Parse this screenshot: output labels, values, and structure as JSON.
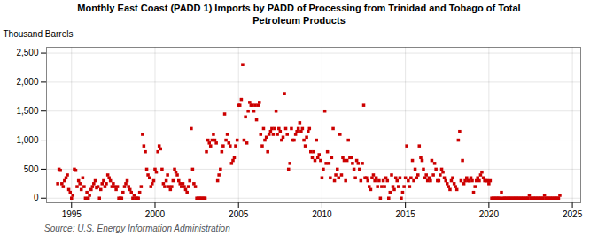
{
  "chart_data": {
    "type": "scatter",
    "title": "Monthly East Coast (PADD 1) Imports by PADD of Processing from Trinidad and Tobago of Total\nPetroleum Products",
    "ylabel": "Thousand Barrels",
    "source": "Source: U.S. Energy Information Administration",
    "color": "#cc0000",
    "marker": "square",
    "grid": true,
    "xlim": [
      1993.5,
      2025.5
    ],
    "ylim": [
      -80,
      2600
    ],
    "xticks": [
      1995,
      2000,
      2005,
      2010,
      2015,
      2020,
      2025
    ],
    "yticks": [
      0,
      500,
      {
        "value": 1000,
        "label": "1,000"
      },
      {
        "value": 1500,
        "label": "1,500"
      },
      {
        "value": 2000,
        "label": "2,000"
      },
      {
        "value": 2500,
        "label": "2,500"
      }
    ],
    "x": [
      1994.17,
      1994.25,
      1994.33,
      1994.42,
      1994.5,
      1994.58,
      1994.67,
      1994.75,
      1994.83,
      1994.92,
      1995.0,
      1995.08,
      1995.17,
      1995.25,
      1995.33,
      1995.42,
      1995.5,
      1995.58,
      1995.67,
      1995.75,
      1995.83,
      1995.92,
      1996.0,
      1996.08,
      1996.17,
      1996.25,
      1996.33,
      1996.42,
      1996.5,
      1996.58,
      1996.67,
      1996.75,
      1996.83,
      1996.92,
      1997.0,
      1997.08,
      1997.17,
      1997.25,
      1997.33,
      1997.42,
      1997.5,
      1997.58,
      1997.67,
      1997.75,
      1997.83,
      1997.92,
      1998.0,
      1998.08,
      1998.17,
      1998.25,
      1998.33,
      1998.42,
      1998.5,
      1998.58,
      1998.67,
      1998.75,
      1998.83,
      1998.92,
      1999.0,
      1999.08,
      1999.17,
      1999.25,
      1999.33,
      1999.42,
      1999.5,
      1999.58,
      1999.67,
      1999.75,
      1999.83,
      1999.92,
      2000.0,
      2000.08,
      2000.17,
      2000.25,
      2000.33,
      2000.42,
      2000.5,
      2000.58,
      2000.67,
      2000.75,
      2000.83,
      2000.92,
      2001.0,
      2001.08,
      2001.17,
      2001.25,
      2001.33,
      2001.42,
      2001.5,
      2001.58,
      2001.67,
      2001.75,
      2001.83,
      2001.92,
      2002.0,
      2002.08,
      2002.17,
      2002.25,
      2002.33,
      2002.42,
      2002.5,
      2002.58,
      2002.67,
      2002.75,
      2002.83,
      2002.92,
      2003.0,
      2003.08,
      2003.17,
      2003.25,
      2003.33,
      2003.42,
      2003.5,
      2003.58,
      2003.67,
      2003.75,
      2003.83,
      2003.92,
      2004.0,
      2004.08,
      2004.17,
      2004.25,
      2004.33,
      2004.42,
      2004.5,
      2004.58,
      2004.67,
      2004.75,
      2004.83,
      2004.92,
      2005.0,
      2005.08,
      2005.17,
      2005.25,
      2005.33,
      2005.42,
      2005.5,
      2005.58,
      2005.67,
      2005.75,
      2005.83,
      2005.92,
      2006.0,
      2006.08,
      2006.17,
      2006.25,
      2006.33,
      2006.42,
      2006.5,
      2006.58,
      2006.67,
      2006.75,
      2006.83,
      2006.92,
      2007.0,
      2007.08,
      2007.17,
      2007.25,
      2007.33,
      2007.42,
      2007.5,
      2007.58,
      2007.67,
      2007.75,
      2007.83,
      2007.92,
      2008.0,
      2008.08,
      2008.17,
      2008.25,
      2008.33,
      2008.42,
      2008.5,
      2008.58,
      2008.67,
      2008.75,
      2008.83,
      2008.92,
      2009.0,
      2009.08,
      2009.17,
      2009.25,
      2009.33,
      2009.42,
      2009.5,
      2009.58,
      2009.67,
      2009.75,
      2009.83,
      2009.92,
      2010.0,
      2010.08,
      2010.17,
      2010.25,
      2010.33,
      2010.42,
      2010.5,
      2010.58,
      2010.67,
      2010.75,
      2010.83,
      2010.92,
      2011.0,
      2011.08,
      2011.17,
      2011.25,
      2011.33,
      2011.42,
      2011.5,
      2011.58,
      2011.67,
      2011.75,
      2011.83,
      2011.92,
      2012.0,
      2012.08,
      2012.17,
      2012.25,
      2012.33,
      2012.42,
      2012.5,
      2012.58,
      2012.67,
      2012.75,
      2012.83,
      2012.92,
      2013.0,
      2013.08,
      2013.17,
      2013.25,
      2013.33,
      2013.42,
      2013.5,
      2013.58,
      2013.67,
      2013.75,
      2013.83,
      2013.92,
      2014.0,
      2014.08,
      2014.17,
      2014.25,
      2014.33,
      2014.42,
      2014.5,
      2014.58,
      2014.67,
      2014.75,
      2014.83,
      2014.92,
      2015.0,
      2015.08,
      2015.17,
      2015.25,
      2015.33,
      2015.42,
      2015.5,
      2015.58,
      2015.67,
      2015.75,
      2015.83,
      2015.92,
      2016.0,
      2016.08,
      2016.17,
      2016.25,
      2016.33,
      2016.42,
      2016.5,
      2016.58,
      2016.67,
      2016.75,
      2016.83,
      2016.92,
      2017.0,
      2017.08,
      2017.17,
      2017.25,
      2017.33,
      2017.42,
      2017.5,
      2017.58,
      2017.67,
      2017.75,
      2017.83,
      2017.92,
      2018.0,
      2018.08,
      2018.17,
      2018.25,
      2018.33,
      2018.42,
      2018.5,
      2018.58,
      2018.67,
      2018.75,
      2018.83,
      2018.92,
      2019.0,
      2019.08,
      2019.17,
      2019.25,
      2019.33,
      2019.42,
      2019.5,
      2019.58,
      2019.67,
      2019.75,
      2019.83,
      2019.92,
      2020.0,
      2020.08,
      2020.17,
      2020.25,
      2020.33,
      2020.42,
      2020.5,
      2020.58,
      2020.67,
      2020.75,
      2020.83,
      2020.92,
      2021.0,
      2021.08,
      2021.17,
      2021.25,
      2021.33,
      2021.42,
      2021.5,
      2021.58,
      2021.67,
      2021.75,
      2021.83,
      2021.92,
      2022.0,
      2022.08,
      2022.17,
      2022.25,
      2022.33,
      2022.42,
      2022.5,
      2022.58,
      2022.67,
      2022.75,
      2022.83,
      2022.92,
      2023.0,
      2023.08,
      2023.17,
      2023.25,
      2023.33,
      2023.42,
      2023.5,
      2023.58,
      2023.67,
      2023.75,
      2023.83,
      2023.92,
      2024.0,
      2024.08,
      2024.17,
      2024.25
    ],
    "values": [
      250,
      500,
      480,
      250,
      200,
      300,
      350,
      400,
      150,
      100,
      0,
      50,
      500,
      480,
      200,
      300,
      250,
      150,
      350,
      200,
      0,
      100,
      0,
      50,
      150,
      200,
      250,
      300,
      180,
      200,
      0,
      150,
      250,
      300,
      200,
      250,
      400,
      350,
      300,
      200,
      250,
      200,
      150,
      200,
      0,
      0,
      0,
      100,
      200,
      250,
      300,
      200,
      150,
      100,
      0,
      50,
      0,
      0,
      0,
      100,
      200,
      1100,
      900,
      800,
      500,
      400,
      350,
      200,
      250,
      300,
      500,
      450,
      800,
      900,
      850,
      500,
      250,
      200,
      300,
      400,
      200,
      150,
      200,
      300,
      500,
      450,
      400,
      300,
      250,
      200,
      250,
      200,
      150,
      100,
      200,
      300,
      1200,
      500,
      250,
      200,
      0,
      0,
      0,
      0,
      0,
      0,
      0,
      800,
      1000,
      950,
      900,
      1000,
      1100,
      1000,
      950,
      300,
      400,
      500,
      800,
      900,
      1450,
      1000,
      1100,
      950,
      900,
      600,
      650,
      700,
      900,
      1000,
      1600,
      1600,
      1700,
      2300,
      1000,
      1400,
      950,
      1500,
      1650,
      1600,
      1600,
      1500,
      1600,
      1350,
      1600,
      1650,
      1100,
      900,
      1200,
      1000,
      1050,
      800,
      1100,
      1150,
      1200,
      1100,
      1200,
      1500,
      1100,
      1200,
      1150,
      1000,
      1050,
      1800,
      1200,
      1100,
      500,
      600,
      1200,
      1000,
      1000,
      1100,
      1150,
      1200,
      1300,
      1150,
      1200,
      1000,
      900,
      1050,
      1150,
      1200,
      800,
      700,
      800,
      650,
      1000,
      700,
      750,
      650,
      350,
      500,
      1500,
      600,
      800,
      600,
      350,
      700,
      1200,
      300,
      400,
      500,
      350,
      1100,
      400,
      700,
      650,
      300,
      650,
      1000,
      700,
      700,
      600,
      500,
      350,
      650,
      600,
      500,
      300,
      600,
      1600,
      350,
      350,
      300,
      200,
      150,
      350,
      400,
      300,
      350,
      200,
      300,
      0,
      200,
      300,
      200,
      350,
      300,
      0,
      100,
      400,
      200,
      150,
      350,
      300,
      200,
      350,
      0,
      100,
      200,
      350,
      900,
      300,
      200,
      350,
      650,
      300,
      500,
      350,
      400,
      900,
      700,
      650,
      500,
      350,
      400,
      300,
      350,
      300,
      650,
      400,
      600,
      500,
      300,
      300,
      400,
      500,
      450,
      350,
      300,
      250,
      200,
      150,
      300,
      350,
      250,
      200,
      150,
      1000,
      1150,
      300,
      650,
      250,
      300,
      350,
      300,
      300,
      350,
      300,
      100,
      200,
      300,
      350,
      300,
      400,
      450,
      350,
      300,
      300,
      300,
      250,
      300,
      0,
      0,
      0,
      0,
      0,
      0,
      0,
      100,
      0,
      0,
      0,
      0,
      0,
      0,
      0,
      0,
      0,
      0,
      0,
      0,
      0,
      0,
      0,
      0,
      0,
      0,
      0,
      50,
      0,
      0,
      0,
      0,
      0,
      0,
      0,
      0,
      0,
      0,
      50,
      0,
      0,
      0,
      0,
      0,
      0,
      0,
      0,
      0,
      0,
      50
    ]
  }
}
